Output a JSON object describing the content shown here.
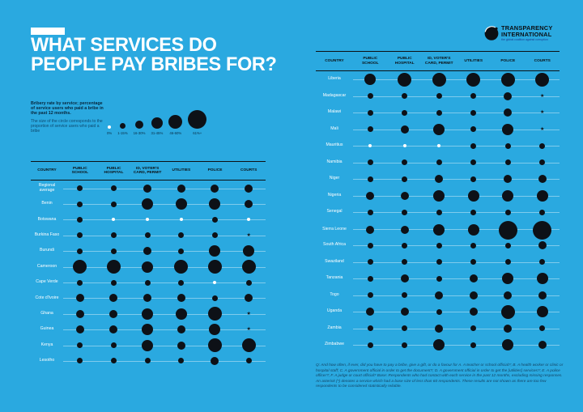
{
  "colors": {
    "background": "#2aa9e0",
    "bubble": "#0d1117",
    "zero_bubble": "#ffffff",
    "text_light": "#ffffff",
    "text_dark": "#0c1115"
  },
  "header": {
    "title_line1": "WHAT SERVICES DO",
    "title_line2": "PEOPLE PAY BRIBES FOR?"
  },
  "logo": {
    "name1": "TRANSPARENCY",
    "name2": "INTERNATIONAL",
    "tagline": "the global coalition against corruption"
  },
  "legend": {
    "bold_text": "Bribery rate by service; percentage of service users who paid a bribe in the past 12 months.",
    "normal_text": "The size of the circle corresponds to the proportion of service users who paid a bribe",
    "buckets": [
      {
        "label": "0%",
        "size": 0
      },
      {
        "label": "1-15%",
        "size": 1
      },
      {
        "label": "16-30%",
        "size": 2
      },
      {
        "label": "31-45%",
        "size": 3
      },
      {
        "label": "46-60%",
        "size": 4
      },
      {
        "label": "61%+",
        "size": 5
      }
    ]
  },
  "columns": [
    "COUNTRY",
    "PUBLIC\nSCHOOL",
    "PUBLIC\nHOSPITAL",
    "ID, VOTER'S\nCARD, PERMIT",
    "UTILITIES",
    "POLICE",
    "COURTS"
  ],
  "footnote": "Q: And how often, if ever, did you have to pay a bribe, give a gift, or do a favour for A. A teacher or school official?; B. A health worker or clinic or hospital staff; C. A government official in order to get the document?; D. A government official in order to get the [utilities] services?; E. A police officer?; F. A judge or court official? Base: Respondents who had contact with each service in the past 12 months, excluding missing responses. An asterisk (*) denotes a service which had a base size of less than 60 respondents. These results are not shown as there are too few respondents to be considered statistically reliable.",
  "chart_data": {
    "type": "heatmap",
    "title": "WHAT SERVICES DO PEOPLE PAY BRIBES FOR?",
    "encoding": "bubble size = bribery rate bucket; white bubble = 0%; * = base size under 60 respondents (not shown)",
    "services": [
      "Public school",
      "Public hospital",
      "ID, voter's card, permit",
      "Utilities",
      "Police",
      "Courts"
    ],
    "bucket_scale": [
      "0%",
      "1-15%",
      "16-30%",
      "31-45%",
      "46-60%",
      "61%+"
    ],
    "left_table_row_count": 12,
    "rows": [
      {
        "country": "Regional average",
        "buckets": [
          1,
          1,
          2,
          2,
          2,
          2
        ]
      },
      {
        "country": "Benin",
        "buckets": [
          1,
          1,
          3,
          3,
          3,
          2
        ]
      },
      {
        "country": "Botswana",
        "buckets": [
          1,
          0,
          0,
          0,
          1,
          0
        ]
      },
      {
        "country": "Burkina Faso",
        "buckets": [
          1,
          1,
          1,
          1,
          1,
          "*"
        ]
      },
      {
        "country": "Burundi",
        "buckets": [
          1,
          1,
          2,
          1,
          3,
          3
        ]
      },
      {
        "country": "Cameroon",
        "buckets": [
          4,
          4,
          3,
          4,
          4,
          4
        ]
      },
      {
        "country": "Cape Verde",
        "buckets": [
          1,
          1,
          1,
          1,
          0,
          1
        ]
      },
      {
        "country": "Cote d'Ivoire",
        "buckets": [
          2,
          2,
          2,
          2,
          1,
          2
        ]
      },
      {
        "country": "Ghana",
        "buckets": [
          2,
          2,
          3,
          3,
          4,
          "*"
        ]
      },
      {
        "country": "Guinea",
        "buckets": [
          2,
          2,
          3,
          2,
          3,
          "*"
        ]
      },
      {
        "country": "Kenya",
        "buckets": [
          1,
          1,
          3,
          2,
          4,
          4
        ]
      },
      {
        "country": "Lesotho",
        "buckets": [
          1,
          1,
          1,
          1,
          2,
          1
        ]
      },
      {
        "country": "Liberia",
        "buckets": [
          3,
          4,
          4,
          4,
          4,
          4
        ]
      },
      {
        "country": "Madagascar",
        "buckets": [
          1,
          1,
          1,
          1,
          2,
          "*"
        ]
      },
      {
        "country": "Malawi",
        "buckets": [
          1,
          1,
          1,
          1,
          2,
          "*"
        ]
      },
      {
        "country": "Mali",
        "buckets": [
          1,
          2,
          3,
          1,
          3,
          "*"
        ]
      },
      {
        "country": "Mauritius",
        "buckets": [
          0,
          0,
          0,
          1,
          1,
          1
        ]
      },
      {
        "country": "Namibia",
        "buckets": [
          1,
          1,
          1,
          1,
          1,
          1
        ]
      },
      {
        "country": "Niger",
        "buckets": [
          1,
          1,
          2,
          1,
          2,
          2
        ]
      },
      {
        "country": "Nigeria",
        "buckets": [
          2,
          2,
          3,
          3,
          3,
          3
        ]
      },
      {
        "country": "Senegal",
        "buckets": [
          1,
          1,
          1,
          1,
          1,
          1
        ]
      },
      {
        "country": "Sierra Leone",
        "buckets": [
          2,
          2,
          3,
          3,
          5,
          5
        ]
      },
      {
        "country": "South Africa",
        "buckets": [
          1,
          1,
          1,
          1,
          1,
          2
        ]
      },
      {
        "country": "Swaziland",
        "buckets": [
          1,
          1,
          1,
          1,
          1,
          1
        ]
      },
      {
        "country": "Tanzania",
        "buckets": [
          1,
          2,
          1,
          2,
          3,
          3
        ]
      },
      {
        "country": "Togo",
        "buckets": [
          1,
          1,
          2,
          2,
          2,
          2
        ]
      },
      {
        "country": "Uganda",
        "buckets": [
          2,
          2,
          1,
          2,
          4,
          3
        ]
      },
      {
        "country": "Zambia",
        "buckets": [
          1,
          1,
          2,
          1,
          2,
          1
        ]
      },
      {
        "country": "Zimbabwe",
        "buckets": [
          1,
          1,
          3,
          1,
          3,
          2
        ]
      }
    ]
  }
}
